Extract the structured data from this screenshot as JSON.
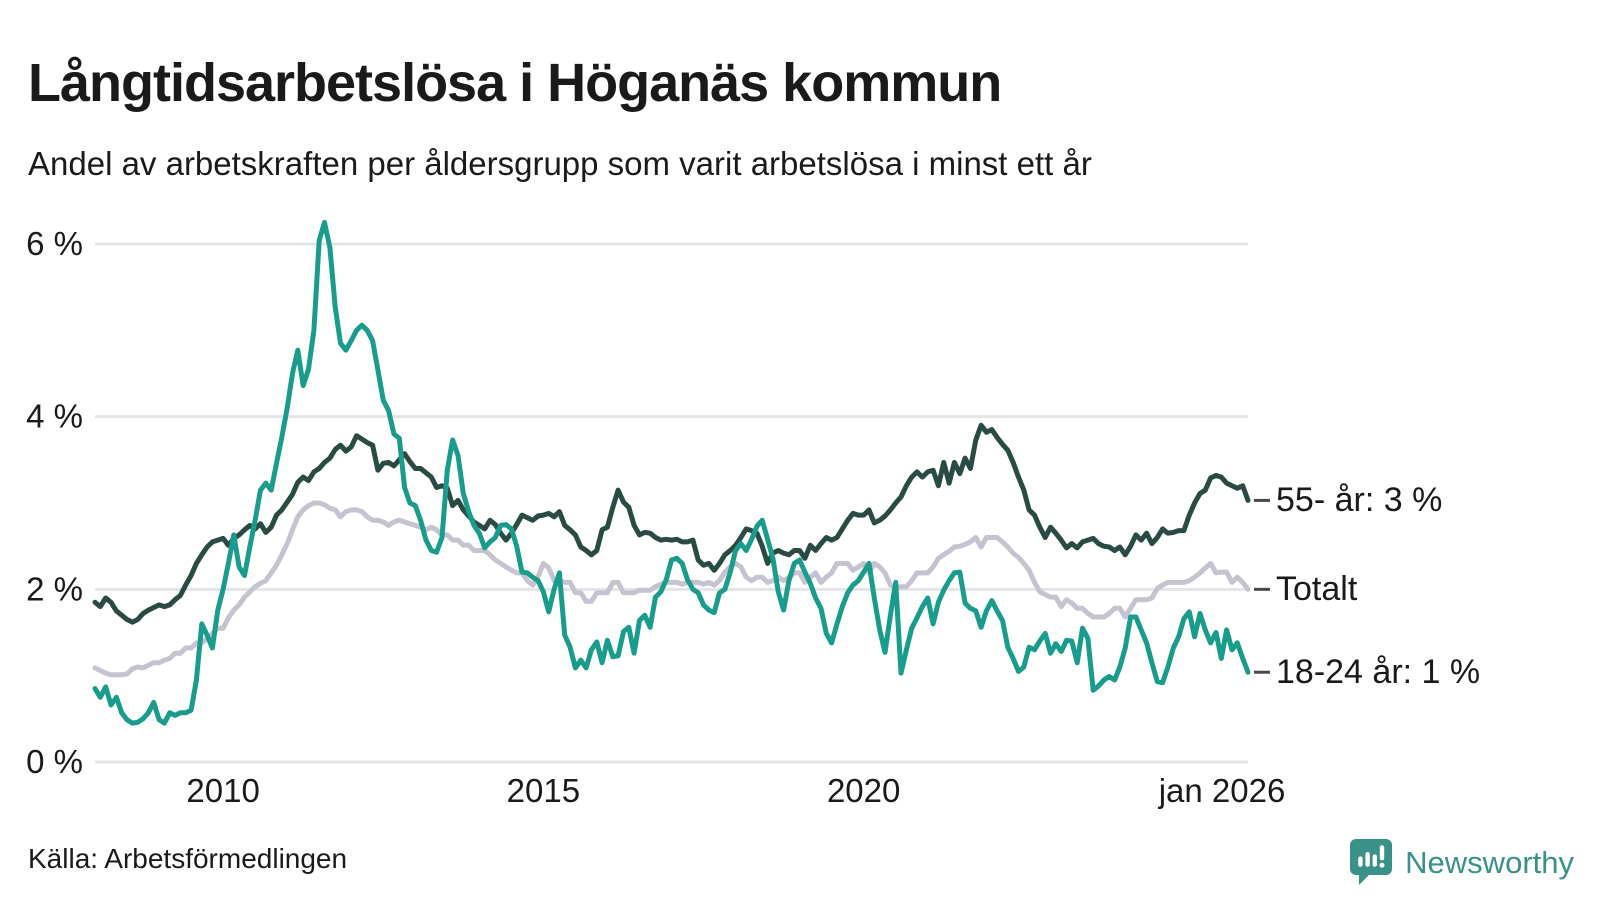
{
  "header": {
    "title": "Långtidsarbetslösa i Höganäs kommun",
    "subtitle": "Andel av arbetskraften per åldersgrupp som varit arbetslösa i minst ett år"
  },
  "footer": {
    "source": "Källa: Arbetsförmedlingen",
    "brand": "Newsworthy",
    "brand_icon": "speech-bubble-bar-chart",
    "brand_color": "#3a9189"
  },
  "colors": {
    "grid": "#e5e5e9",
    "text": "#1a1a1a",
    "tick_dash": "#4a4a4a"
  },
  "chart_data": {
    "type": "line",
    "title": "Långtidsarbetslösa i Höganäs kommun",
    "subtitle": "Andel av arbetskraften per åldersgrupp som varit arbetslösa i minst ett år",
    "x_start": 2008.0,
    "x_end": 2026.0,
    "x_step_months": 1,
    "ylim": [
      0,
      6.4
    ],
    "grid": true,
    "legend_position": "right-end-labels",
    "y_ticks": [
      {
        "value": 0,
        "label": "0 %"
      },
      {
        "value": 2,
        "label": "2 %"
      },
      {
        "value": 4,
        "label": "4 %"
      },
      {
        "value": 6,
        "label": "6 %"
      }
    ],
    "x_ticks": [
      {
        "x": 2010,
        "label": "2010"
      },
      {
        "x": 2015,
        "label": "2015"
      },
      {
        "x": 2020,
        "label": "2020"
      },
      {
        "x": 2026,
        "label": "jan 2026"
      }
    ],
    "series": [
      {
        "name": "55- år",
        "end_label": "55- år: 3 %",
        "end_value_pct": 3,
        "color": "#2a4b43",
        "values": [
          1.85,
          1.8,
          1.9,
          1.85,
          1.75,
          1.7,
          1.65,
          1.62,
          1.65,
          1.72,
          1.76,
          1.79,
          1.82,
          1.8,
          1.82,
          1.88,
          1.93,
          2.05,
          2.16,
          2.3,
          2.4,
          2.49,
          2.55,
          2.57,
          2.59,
          2.51,
          2.59,
          2.63,
          2.69,
          2.74,
          2.7,
          2.76,
          2.66,
          2.72,
          2.86,
          2.92,
          3.01,
          3.1,
          3.24,
          3.3,
          3.26,
          3.36,
          3.4,
          3.47,
          3.52,
          3.62,
          3.67,
          3.6,
          3.65,
          3.78,
          3.74,
          3.7,
          3.67,
          3.38,
          3.46,
          3.47,
          3.43,
          3.5,
          3.57,
          3.48,
          3.4,
          3.4,
          3.35,
          3.3,
          3.18,
          3.2,
          3.17,
          2.97,
          3.03,
          2.92,
          2.85,
          2.78,
          2.74,
          2.7,
          2.8,
          2.75,
          2.65,
          2.57,
          2.65,
          2.75,
          2.86,
          2.83,
          2.8,
          2.85,
          2.86,
          2.88,
          2.84,
          2.9,
          2.74,
          2.69,
          2.63,
          2.49,
          2.45,
          2.4,
          2.45,
          2.69,
          2.72,
          2.95,
          3.15,
          3.01,
          2.95,
          2.74,
          2.63,
          2.66,
          2.65,
          2.6,
          2.57,
          2.58,
          2.57,
          2.58,
          2.55,
          2.55,
          2.57,
          2.34,
          2.28,
          2.3,
          2.22,
          2.3,
          2.4,
          2.45,
          2.51,
          2.6,
          2.7,
          2.68,
          2.65,
          2.5,
          2.3,
          2.42,
          2.45,
          2.42,
          2.4,
          2.45,
          2.45,
          2.36,
          2.51,
          2.45,
          2.53,
          2.6,
          2.57,
          2.6,
          2.7,
          2.8,
          2.88,
          2.86,
          2.86,
          2.92,
          2.77,
          2.8,
          2.85,
          2.92,
          3.0,
          3.07,
          3.2,
          3.3,
          3.36,
          3.3,
          3.36,
          3.38,
          3.2,
          3.47,
          3.23,
          3.47,
          3.34,
          3.52,
          3.4,
          3.73,
          3.9,
          3.82,
          3.85,
          3.76,
          3.68,
          3.61,
          3.47,
          3.3,
          3.15,
          2.92,
          2.86,
          2.72,
          2.6,
          2.72,
          2.65,
          2.57,
          2.48,
          2.53,
          2.48,
          2.55,
          2.57,
          2.59,
          2.53,
          2.5,
          2.49,
          2.45,
          2.49,
          2.4,
          2.5,
          2.63,
          2.57,
          2.65,
          2.53,
          2.6,
          2.7,
          2.65,
          2.66,
          2.68,
          2.68,
          2.86,
          3.0,
          3.11,
          3.15,
          3.29,
          3.32,
          3.3,
          3.23,
          3.2,
          3.17,
          3.2,
          3.03
        ]
      },
      {
        "name": "Totalt",
        "end_label": "Totalt",
        "end_value_pct": 2,
        "color": "#c6c3d0",
        "values": [
          1.09,
          1.06,
          1.03,
          1.01,
          1.01,
          1.01,
          1.02,
          1.08,
          1.1,
          1.09,
          1.12,
          1.15,
          1.15,
          1.18,
          1.2,
          1.26,
          1.26,
          1.32,
          1.32,
          1.38,
          1.38,
          1.43,
          1.49,
          1.55,
          1.55,
          1.67,
          1.76,
          1.82,
          1.91,
          1.97,
          2.03,
          2.07,
          2.1,
          2.19,
          2.28,
          2.4,
          2.53,
          2.69,
          2.84,
          2.92,
          2.97,
          3.0,
          3.0,
          2.98,
          2.94,
          2.92,
          2.84,
          2.9,
          2.92,
          2.92,
          2.9,
          2.84,
          2.8,
          2.8,
          2.78,
          2.74,
          2.78,
          2.8,
          2.78,
          2.76,
          2.74,
          2.72,
          2.69,
          2.72,
          2.69,
          2.63,
          2.63,
          2.57,
          2.57,
          2.51,
          2.51,
          2.45,
          2.45,
          2.45,
          2.4,
          2.34,
          2.3,
          2.26,
          2.22,
          2.19,
          2.19,
          2.1,
          2.05,
          2.15,
          2.3,
          2.25,
          2.1,
          2.1,
          2.08,
          2.08,
          1.96,
          1.96,
          1.86,
          1.86,
          1.96,
          1.96,
          1.96,
          2.08,
          2.08,
          1.96,
          1.96,
          1.96,
          1.99,
          1.99,
          1.99,
          2.03,
          2.06,
          2.08,
          2.08,
          2.08,
          2.06,
          2.08,
          2.08,
          2.08,
          2.06,
          2.08,
          2.05,
          2.1,
          2.2,
          2.26,
          2.3,
          2.26,
          2.14,
          2.1,
          2.14,
          2.14,
          2.08,
          2.1,
          2.14,
          2.1,
          2.14,
          2.19,
          2.19,
          2.08,
          2.14,
          2.19,
          2.08,
          2.14,
          2.19,
          2.3,
          2.3,
          2.3,
          2.22,
          2.26,
          2.3,
          2.19,
          2.3,
          2.26,
          2.19,
          2.05,
          2.02,
          2.03,
          2.03,
          2.1,
          2.19,
          2.19,
          2.19,
          2.26,
          2.36,
          2.4,
          2.44,
          2.49,
          2.5,
          2.52,
          2.55,
          2.6,
          2.49,
          2.6,
          2.6,
          2.6,
          2.55,
          2.49,
          2.42,
          2.37,
          2.3,
          2.22,
          2.08,
          1.97,
          1.94,
          1.91,
          1.91,
          1.8,
          1.88,
          1.84,
          1.78,
          1.78,
          1.72,
          1.68,
          1.68,
          1.68,
          1.72,
          1.78,
          1.78,
          1.68,
          1.78,
          1.88,
          1.88,
          1.88,
          1.9,
          2.01,
          2.05,
          2.08,
          2.08,
          2.08,
          2.08,
          2.1,
          2.14,
          2.19,
          2.25,
          2.3,
          2.19,
          2.2,
          2.2,
          2.08,
          2.14,
          2.08,
          2.0
        ]
      },
      {
        "name": "18-24 år",
        "end_label": "18-24 år: 1 %",
        "end_value_pct": 1,
        "color": "#1a9c8c",
        "values": [
          0.85,
          0.75,
          0.87,
          0.66,
          0.75,
          0.57,
          0.49,
          0.45,
          0.46,
          0.5,
          0.57,
          0.69,
          0.49,
          0.45,
          0.57,
          0.54,
          0.57,
          0.57,
          0.6,
          0.95,
          1.6,
          1.47,
          1.32,
          1.76,
          2.0,
          2.3,
          2.63,
          2.26,
          2.16,
          2.49,
          2.8,
          3.15,
          3.23,
          3.15,
          3.46,
          3.76,
          4.1,
          4.5,
          4.77,
          4.36,
          4.55,
          5.0,
          6.04,
          6.25,
          5.96,
          5.27,
          4.85,
          4.77,
          4.88,
          5.0,
          5.06,
          5.0,
          4.88,
          4.54,
          4.19,
          4.07,
          3.8,
          3.75,
          3.18,
          3.0,
          2.97,
          2.8,
          2.57,
          2.45,
          2.43,
          2.6,
          3.38,
          3.73,
          3.55,
          3.11,
          2.9,
          2.74,
          2.65,
          2.48,
          2.55,
          2.6,
          2.74,
          2.75,
          2.7,
          2.5,
          2.2,
          2.19,
          2.14,
          2.1,
          1.97,
          1.74,
          2.0,
          2.19,
          1.47,
          1.33,
          1.09,
          1.18,
          1.09,
          1.3,
          1.39,
          1.15,
          1.41,
          1.22,
          1.23,
          1.51,
          1.56,
          1.26,
          1.64,
          1.7,
          1.56,
          1.91,
          1.97,
          2.11,
          2.34,
          2.36,
          2.3,
          2.11,
          2.0,
          1.96,
          1.82,
          1.76,
          1.73,
          1.96,
          2.0,
          2.2,
          2.45,
          2.53,
          2.45,
          2.58,
          2.73,
          2.8,
          2.58,
          2.36,
          1.97,
          1.76,
          2.1,
          2.3,
          2.34,
          2.2,
          2.07,
          1.9,
          1.78,
          1.49,
          1.38,
          1.6,
          1.8,
          1.96,
          2.05,
          2.1,
          2.2,
          2.3,
          1.9,
          1.53,
          1.27,
          1.7,
          2.08,
          1.03,
          1.3,
          1.55,
          1.67,
          1.8,
          1.9,
          1.6,
          1.85,
          1.99,
          2.1,
          2.19,
          2.2,
          1.84,
          1.78,
          1.75,
          1.56,
          1.75,
          1.87,
          1.75,
          1.64,
          1.33,
          1.2,
          1.05,
          1.1,
          1.33,
          1.3,
          1.4,
          1.49,
          1.26,
          1.37,
          1.28,
          1.41,
          1.4,
          1.15,
          1.55,
          1.43,
          0.83,
          0.88,
          0.95,
          0.99,
          0.95,
          1.1,
          1.32,
          1.68,
          1.68,
          1.53,
          1.38,
          1.15,
          0.93,
          0.92,
          1.1,
          1.32,
          1.45,
          1.66,
          1.74,
          1.45,
          1.72,
          1.53,
          1.38,
          1.5,
          1.2,
          1.53,
          1.3,
          1.38,
          1.2,
          1.04
        ]
      }
    ]
  }
}
